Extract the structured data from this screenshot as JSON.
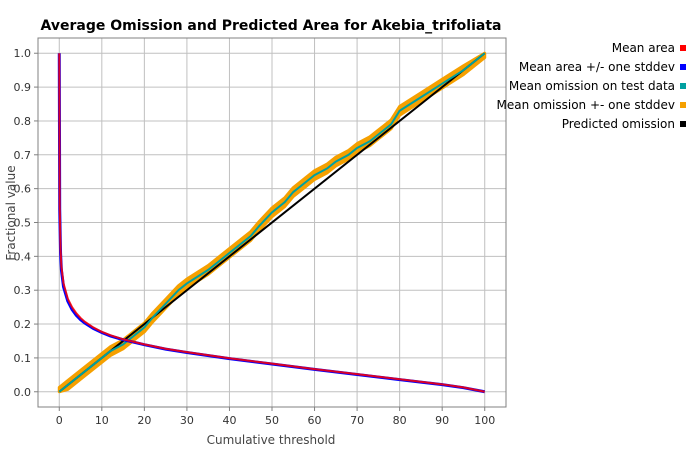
{
  "chart_data": {
    "type": "line",
    "title": "Average Omission and Predicted Area for Akebia_trifoliata",
    "xlabel": "Cumulative threshold",
    "ylabel": "Fractional value",
    "xlim": [
      -5,
      105
    ],
    "ylim": [
      -0.045,
      1.045
    ],
    "xticks": [
      0,
      10,
      20,
      30,
      40,
      50,
      60,
      70,
      80,
      90,
      100
    ],
    "yticks": [
      0.0,
      0.1,
      0.2,
      0.3,
      0.4,
      0.5,
      0.6,
      0.7,
      0.8,
      0.9,
      1.0
    ],
    "ytick_labels": [
      "0.0",
      "0.1",
      "0.2",
      "0.3",
      "0.4",
      "0.5",
      "0.6",
      "0.7",
      "0.8",
      "0.9",
      "1.0"
    ],
    "grid": true,
    "legend_position": "right",
    "series": [
      {
        "name": "Mean area",
        "color": "#ff0000",
        "x": [
          0,
          0.1,
          0.3,
          0.5,
          1,
          2,
          3,
          4,
          5,
          6,
          8,
          10,
          12,
          15,
          20,
          25,
          30,
          40,
          50,
          60,
          70,
          80,
          90,
          95,
          100
        ],
        "y": [
          1.0,
          0.55,
          0.42,
          0.37,
          0.32,
          0.275,
          0.25,
          0.232,
          0.218,
          0.207,
          0.19,
          0.177,
          0.167,
          0.155,
          0.14,
          0.127,
          0.117,
          0.099,
          0.083,
          0.067,
          0.052,
          0.037,
          0.022,
          0.013,
          0.0
        ]
      },
      {
        "name": "Mean area +/- one stddev",
        "color": "#0000ff",
        "x": [
          0,
          0.1,
          0.3,
          0.5,
          1,
          2,
          3,
          4,
          5,
          6,
          8,
          10,
          12,
          15,
          20,
          25,
          30,
          40,
          50,
          60,
          70,
          80,
          90,
          95,
          100
        ],
        "y": [
          1.0,
          0.54,
          0.41,
          0.36,
          0.31,
          0.268,
          0.243,
          0.226,
          0.213,
          0.203,
          0.187,
          0.175,
          0.165,
          0.154,
          0.139,
          0.126,
          0.116,
          0.098,
          0.082,
          0.066,
          0.051,
          0.036,
          0.021,
          0.012,
          0.0
        ]
      },
      {
        "name": "Mean omission on test data",
        "color": "#00a0a0",
        "x": [
          0,
          2,
          5,
          8,
          10,
          12,
          15,
          18,
          20,
          22,
          25,
          28,
          30,
          35,
          40,
          43,
          45,
          47,
          50,
          53,
          55,
          58,
          60,
          63,
          65,
          68,
          70,
          73,
          75,
          78,
          80,
          85,
          90,
          95,
          100
        ],
        "y": [
          0.0,
          0.02,
          0.05,
          0.08,
          0.1,
          0.12,
          0.14,
          0.17,
          0.19,
          0.22,
          0.26,
          0.3,
          0.32,
          0.36,
          0.41,
          0.44,
          0.46,
          0.49,
          0.53,
          0.56,
          0.59,
          0.62,
          0.64,
          0.66,
          0.68,
          0.7,
          0.72,
          0.74,
          0.76,
          0.79,
          0.83,
          0.87,
          0.91,
          0.95,
          1.0
        ]
      },
      {
        "name": "Mean omission +- one stddev",
        "color": "#f5a000",
        "x": [
          0,
          2,
          5,
          8,
          10,
          12,
          15,
          18,
          20,
          22,
          25,
          28,
          30,
          35,
          40,
          43,
          45,
          47,
          50,
          53,
          55,
          58,
          60,
          63,
          65,
          68,
          70,
          73,
          75,
          78,
          80,
          85,
          90,
          95,
          100
        ],
        "y": [
          0.0,
          0.02,
          0.05,
          0.08,
          0.1,
          0.12,
          0.14,
          0.17,
          0.19,
          0.22,
          0.26,
          0.3,
          0.32,
          0.36,
          0.41,
          0.44,
          0.46,
          0.49,
          0.53,
          0.56,
          0.59,
          0.62,
          0.64,
          0.66,
          0.68,
          0.7,
          0.72,
          0.74,
          0.76,
          0.79,
          0.83,
          0.87,
          0.91,
          0.95,
          1.0
        ],
        "band": 0.013
      },
      {
        "name": "Predicted omission",
        "color": "#000000",
        "x": [
          0,
          100
        ],
        "y": [
          0.0,
          1.0
        ]
      }
    ]
  }
}
